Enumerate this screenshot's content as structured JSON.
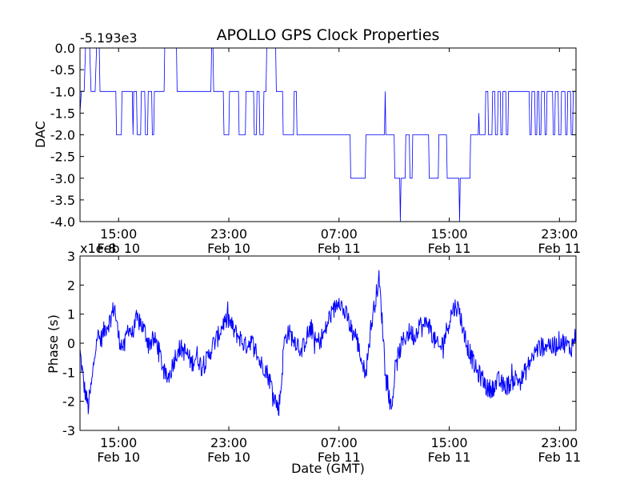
{
  "title": "APOLLO GPS Clock Properties",
  "colors": {
    "series": "#0000ff",
    "axes": "#000000",
    "background": "#ffffff"
  },
  "chart_data": [
    {
      "type": "line",
      "ylabel": "DAC",
      "xlabel": "",
      "offset_label": "-5.193e3",
      "ylim": [
        -4.0,
        0.0
      ],
      "y_ticks": [
        "0.0",
        "-0.5",
        "-1.0",
        "-1.5",
        "-2.0",
        "-2.5",
        "-3.0",
        "-3.5",
        "-4.0"
      ],
      "x_ticks": [
        {
          "time": "15:00",
          "date": "Feb 10"
        },
        {
          "time": "23:00",
          "date": "Feb 10"
        },
        {
          "time": "07:00",
          "date": "Feb 11"
        },
        {
          "time": "15:00",
          "date": "Feb 11"
        },
        {
          "time": "23:00",
          "date": "Feb 11"
        }
      ],
      "x_tick_hours": [
        15,
        23,
        31,
        39,
        47
      ],
      "xlim_hours": [
        12.2,
        48.2
      ],
      "series": [
        {
          "points": [
            [
              12.2,
              -1.5
            ],
            [
              12.3,
              -1.0
            ],
            [
              12.5,
              -1.0
            ],
            [
              12.6,
              0.0
            ],
            [
              12.9,
              0.0
            ],
            [
              13.0,
              -1.0
            ],
            [
              13.3,
              -1.0
            ],
            [
              13.4,
              0.0
            ],
            [
              13.6,
              0.0
            ],
            [
              13.65,
              -1.0
            ],
            [
              14.2,
              -1.0
            ],
            [
              14.8,
              -1.0
            ],
            [
              14.85,
              -2.0
            ],
            [
              15.2,
              -2.0
            ],
            [
              15.25,
              -1.0
            ],
            [
              16.0,
              -1.0
            ],
            [
              16.05,
              -2.0
            ],
            [
              16.1,
              -1.0
            ],
            [
              16.3,
              -1.0
            ],
            [
              16.35,
              -2.0
            ],
            [
              16.6,
              -2.0
            ],
            [
              16.65,
              -1.0
            ],
            [
              16.9,
              -1.0
            ],
            [
              16.95,
              -2.0
            ],
            [
              17.1,
              -2.0
            ],
            [
              17.15,
              -1.0
            ],
            [
              17.4,
              -1.0
            ],
            [
              17.45,
              -2.0
            ],
            [
              17.55,
              -2.0
            ],
            [
              17.6,
              -1.0
            ],
            [
              18.3,
              -1.0
            ],
            [
              18.35,
              0.0
            ],
            [
              19.2,
              0.0
            ],
            [
              19.25,
              -1.0
            ],
            [
              21.7,
              -1.0
            ],
            [
              21.75,
              0.0
            ],
            [
              21.85,
              0.0
            ],
            [
              21.9,
              -1.0
            ],
            [
              22.6,
              -1.0
            ],
            [
              22.65,
              -2.0
            ],
            [
              23.0,
              -2.0
            ],
            [
              23.05,
              -1.0
            ],
            [
              23.7,
              -1.0
            ],
            [
              23.75,
              -2.0
            ],
            [
              24.2,
              -2.0
            ],
            [
              24.25,
              -1.0
            ],
            [
              24.8,
              -1.0
            ],
            [
              24.85,
              -2.0
            ],
            [
              25.0,
              -2.0
            ],
            [
              25.05,
              -1.0
            ],
            [
              25.2,
              -1.0
            ],
            [
              25.25,
              -2.0
            ],
            [
              25.5,
              -2.0
            ],
            [
              25.55,
              -1.0
            ],
            [
              25.7,
              -1.0
            ],
            [
              25.75,
              0.0
            ],
            [
              26.4,
              0.0
            ],
            [
              26.45,
              -1.0
            ],
            [
              26.9,
              -1.0
            ],
            [
              26.95,
              -2.0
            ],
            [
              27.7,
              -2.0
            ],
            [
              27.75,
              -1.0
            ],
            [
              27.9,
              -1.0
            ],
            [
              27.95,
              -2.0
            ],
            [
              31.8,
              -2.0
            ],
            [
              31.85,
              -3.0
            ],
            [
              32.9,
              -3.0
            ],
            [
              32.95,
              -2.0
            ],
            [
              34.3,
              -2.0
            ],
            [
              34.35,
              -1.0
            ],
            [
              34.4,
              -2.0
            ],
            [
              35.0,
              -2.0
            ],
            [
              35.05,
              -3.0
            ],
            [
              35.4,
              -3.0
            ],
            [
              35.45,
              -4.0
            ],
            [
              35.5,
              -3.0
            ],
            [
              35.8,
              -3.0
            ],
            [
              35.85,
              -2.0
            ],
            [
              36.1,
              -2.0
            ],
            [
              36.15,
              -3.0
            ],
            [
              36.3,
              -3.0
            ],
            [
              36.35,
              -2.0
            ],
            [
              37.5,
              -2.0
            ],
            [
              37.55,
              -3.0
            ],
            [
              38.2,
              -3.0
            ],
            [
              38.25,
              -2.0
            ],
            [
              38.8,
              -2.0
            ],
            [
              38.85,
              -3.0
            ],
            [
              39.7,
              -3.0
            ],
            [
              39.75,
              -4.0
            ],
            [
              39.8,
              -3.0
            ],
            [
              40.5,
              -3.0
            ],
            [
              40.55,
              -2.0
            ],
            [
              41.1,
              -2.0
            ],
            [
              41.15,
              -1.5
            ],
            [
              41.2,
              -2.0
            ],
            [
              41.6,
              -2.0
            ],
            [
              41.65,
              -1.0
            ],
            [
              41.8,
              -1.0
            ],
            [
              41.85,
              -2.0
            ],
            [
              42.1,
              -2.0
            ],
            [
              42.15,
              -1.0
            ],
            [
              42.3,
              -1.0
            ],
            [
              42.35,
              -2.0
            ],
            [
              42.5,
              -2.0
            ],
            [
              42.55,
              -1.0
            ],
            [
              42.7,
              -1.0
            ],
            [
              42.75,
              -2.0
            ],
            [
              42.85,
              -2.0
            ],
            [
              42.9,
              -1.0
            ],
            [
              43.1,
              -1.0
            ],
            [
              43.15,
              -2.0
            ],
            [
              43.25,
              -2.0
            ],
            [
              43.3,
              -1.0
            ],
            [
              44.8,
              -1.0
            ],
            [
              44.85,
              -2.0
            ],
            [
              44.95,
              -2.0
            ],
            [
              45.0,
              -1.0
            ],
            [
              45.2,
              -1.0
            ],
            [
              45.25,
              -2.0
            ],
            [
              45.35,
              -2.0
            ],
            [
              45.4,
              -1.0
            ],
            [
              45.5,
              -1.0
            ],
            [
              45.55,
              -2.0
            ],
            [
              45.65,
              -2.0
            ],
            [
              45.7,
              -1.0
            ],
            [
              45.9,
              -1.0
            ],
            [
              45.95,
              -2.0
            ],
            [
              46.05,
              -2.0
            ],
            [
              46.1,
              -1.0
            ],
            [
              46.5,
              -1.0
            ],
            [
              46.55,
              -2.0
            ],
            [
              46.65,
              -2.0
            ],
            [
              46.7,
              -1.0
            ],
            [
              46.9,
              -1.0
            ],
            [
              46.95,
              -2.0
            ],
            [
              47.1,
              -2.0
            ],
            [
              47.15,
              -1.0
            ],
            [
              47.4,
              -1.0
            ],
            [
              47.45,
              -2.0
            ],
            [
              47.55,
              -2.0
            ],
            [
              47.6,
              -1.0
            ],
            [
              47.8,
              -1.0
            ],
            [
              47.85,
              -2.0
            ],
            [
              47.95,
              -2.0
            ],
            [
              48.0,
              -1.0
            ],
            [
              48.2,
              -1.0
            ]
          ]
        }
      ]
    },
    {
      "type": "line",
      "ylabel": "Phase (s)",
      "xlabel": "Date (GMT)",
      "offset_label": "x1e-8",
      "ylim": [
        -3,
        3
      ],
      "y_ticks": [
        "3",
        "2",
        "1",
        "0",
        "-1",
        "-2",
        "-3"
      ],
      "x_ticks": [
        {
          "time": "15:00",
          "date": "Feb 10"
        },
        {
          "time": "23:00",
          "date": "Feb 10"
        },
        {
          "time": "07:00",
          "date": "Feb 11"
        },
        {
          "time": "15:00",
          "date": "Feb 11"
        },
        {
          "time": "23:00",
          "date": "Feb 11"
        }
      ],
      "x_tick_hours": [
        15,
        23,
        31,
        39,
        47
      ],
      "xlim_hours": [
        12.2,
        48.2
      ],
      "noise_amplitude": 0.35,
      "series": [
        {
          "points": [
            [
              12.2,
              -0.3
            ],
            [
              12.5,
              -1.5
            ],
            [
              12.8,
              -2.2
            ],
            [
              13.1,
              -1.2
            ],
            [
              13.4,
              0.3
            ],
            [
              13.7,
              0.1
            ],
            [
              14.0,
              0.5
            ],
            [
              14.4,
              0.8
            ],
            [
              14.7,
              1.3
            ],
            [
              15.0,
              0.2
            ],
            [
              15.4,
              -0.2
            ],
            [
              15.7,
              0.6
            ],
            [
              16.0,
              0.3
            ],
            [
              16.3,
              0.8
            ],
            [
              16.6,
              0.7
            ],
            [
              16.9,
              0.4
            ],
            [
              17.2,
              0.0
            ],
            [
              17.5,
              0.1
            ],
            [
              17.8,
              0.0
            ],
            [
              18.1,
              -0.6
            ],
            [
              18.4,
              -1.2
            ],
            [
              18.7,
              -1.1
            ],
            [
              19.0,
              -0.6
            ],
            [
              19.3,
              -0.2
            ],
            [
              19.6,
              -0.2
            ],
            [
              20.0,
              -0.4
            ],
            [
              20.3,
              -0.7
            ],
            [
              20.7,
              -0.4
            ],
            [
              21.0,
              -0.8
            ],
            [
              21.4,
              -0.6
            ],
            [
              21.8,
              -0.1
            ],
            [
              22.2,
              0.2
            ],
            [
              22.6,
              0.7
            ],
            [
              23.0,
              0.8
            ],
            [
              23.4,
              0.4
            ],
            [
              23.8,
              0.2
            ],
            [
              24.2,
              -0.1
            ],
            [
              24.6,
              0.1
            ],
            [
              25.0,
              -0.3
            ],
            [
              25.3,
              -0.7
            ],
            [
              25.6,
              -0.8
            ],
            [
              26.0,
              -1.3
            ],
            [
              26.3,
              -1.8
            ],
            [
              26.6,
              -2.3
            ],
            [
              26.8,
              -1.5
            ],
            [
              27.0,
              0.0
            ],
            [
              27.3,
              0.4
            ],
            [
              27.6,
              0.2
            ],
            [
              28.0,
              0.0
            ],
            [
              28.3,
              -0.3
            ],
            [
              28.6,
              0.2
            ],
            [
              29.0,
              0.5
            ],
            [
              29.3,
              0.0
            ],
            [
              29.6,
              0.1
            ],
            [
              30.0,
              0.4
            ],
            [
              30.3,
              0.9
            ],
            [
              30.6,
              1.1
            ],
            [
              31.0,
              1.6
            ],
            [
              31.3,
              1.1
            ],
            [
              31.6,
              0.9
            ],
            [
              31.9,
              0.4
            ],
            [
              32.2,
              0.3
            ],
            [
              32.5,
              -0.3
            ],
            [
              32.8,
              -0.9
            ],
            [
              33.0,
              -0.8
            ],
            [
              33.3,
              0.5
            ],
            [
              33.6,
              1.4
            ],
            [
              33.9,
              2.2
            ],
            [
              34.1,
              1.0
            ],
            [
              34.3,
              -0.4
            ],
            [
              34.5,
              -1.4
            ],
            [
              34.8,
              -2.3
            ],
            [
              35.0,
              -1.3
            ],
            [
              35.3,
              -0.4
            ],
            [
              35.6,
              0.0
            ],
            [
              35.9,
              0.3
            ],
            [
              36.2,
              0.4
            ],
            [
              36.5,
              0.2
            ],
            [
              36.8,
              0.7
            ],
            [
              37.1,
              0.5
            ],
            [
              37.4,
              0.8
            ],
            [
              37.7,
              0.4
            ],
            [
              38.0,
              0.0
            ],
            [
              38.3,
              -0.2
            ],
            [
              38.6,
              0.1
            ],
            [
              38.9,
              0.6
            ],
            [
              39.2,
              1.1
            ],
            [
              39.5,
              1.3
            ],
            [
              39.8,
              1.0
            ],
            [
              40.1,
              0.2
            ],
            [
              40.4,
              -0.2
            ],
            [
              40.7,
              -0.6
            ],
            [
              41.0,
              -1.0
            ],
            [
              41.4,
              -1.2
            ],
            [
              41.8,
              -1.6
            ],
            [
              42.2,
              -1.5
            ],
            [
              42.6,
              -1.3
            ],
            [
              43.0,
              -1.5
            ],
            [
              43.4,
              -1.4
            ],
            [
              43.8,
              -1.2
            ],
            [
              44.2,
              -1.3
            ],
            [
              44.6,
              -0.9
            ],
            [
              45.0,
              -0.5
            ],
            [
              45.4,
              -0.2
            ],
            [
              45.8,
              -0.1
            ],
            [
              46.2,
              0.0
            ],
            [
              46.6,
              -0.2
            ],
            [
              47.0,
              0.1
            ],
            [
              47.4,
              0.0
            ],
            [
              47.8,
              -0.2
            ],
            [
              48.2,
              0.3
            ]
          ]
        }
      ]
    }
  ]
}
